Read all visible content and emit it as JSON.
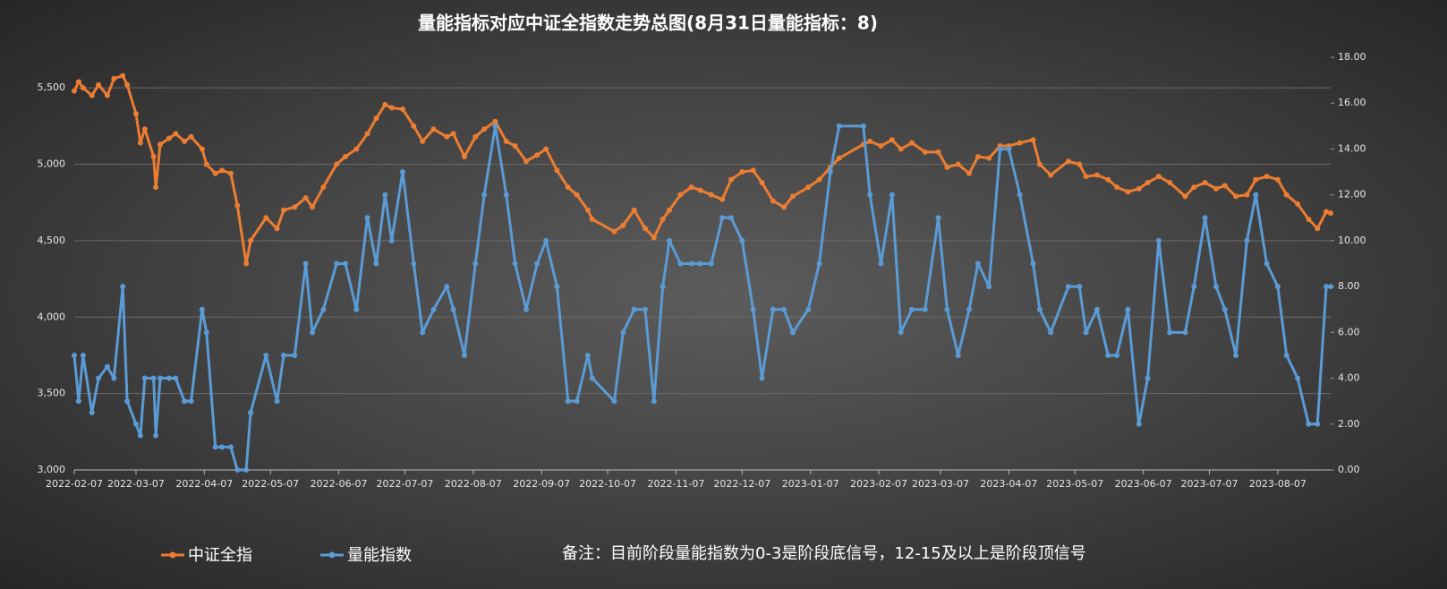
{
  "chart_data": {
    "type": "line",
    "title": "量能指标对应中证全指数走势总图(8月31日量能指标：8)",
    "note": "备注：目前阶段量能指数为0-3是阶段底信号，12-15及以上是阶段顶信号",
    "legend": "bottom",
    "grid": true,
    "x": [
      "2022-02-07",
      "2022-02-09",
      "2022-02-11",
      "2022-02-15",
      "2022-02-18",
      "2022-02-22",
      "2022-02-25",
      "2022-03-01",
      "2022-03-03",
      "2022-03-07",
      "2022-03-09",
      "2022-03-11",
      "2022-03-15",
      "2022-03-16",
      "2022-03-18",
      "2022-03-22",
      "2022-03-25",
      "2022-03-29",
      "2022-04-01",
      "2022-04-06",
      "2022-04-08",
      "2022-04-12",
      "2022-04-15",
      "2022-04-19",
      "2022-04-22",
      "2022-04-26",
      "2022-04-28",
      "2022-05-05",
      "2022-05-10",
      "2022-05-13",
      "2022-05-18",
      "2022-05-23",
      "2022-05-26",
      "2022-05-31",
      "2022-06-06",
      "2022-06-10",
      "2022-06-15",
      "2022-06-20",
      "2022-06-24",
      "2022-06-28",
      "2022-07-01",
      "2022-07-06",
      "2022-07-11",
      "2022-07-15",
      "2022-07-20",
      "2022-07-26",
      "2022-07-29",
      "2022-08-03",
      "2022-08-08",
      "2022-08-12",
      "2022-08-17",
      "2022-08-22",
      "2022-08-26",
      "2022-08-31",
      "2022-09-05",
      "2022-09-09",
      "2022-09-14",
      "2022-09-19",
      "2022-09-23",
      "2022-09-28",
      "2022-09-30",
      "2022-10-10",
      "2022-10-14",
      "2022-10-19",
      "2022-10-24",
      "2022-10-28",
      "2022-11-01",
      "2022-11-04",
      "2022-11-09",
      "2022-11-14",
      "2022-11-18",
      "2022-11-23",
      "2022-11-28",
      "2022-12-02",
      "2022-12-07",
      "2022-12-12",
      "2022-12-16",
      "2022-12-21",
      "2022-12-26",
      "2022-12-30",
      "2023-01-06",
      "2023-01-11",
      "2023-01-16",
      "2023-01-20",
      "2023-01-31",
      "2023-02-03",
      "2023-02-08",
      "2023-02-13",
      "2023-02-17",
      "2023-02-22",
      "2023-02-28",
      "2023-03-06",
      "2023-03-10",
      "2023-03-15",
      "2023-03-20",
      "2023-03-24",
      "2023-03-29",
      "2023-04-03",
      "2023-04-07",
      "2023-04-12",
      "2023-04-18",
      "2023-04-21",
      "2023-04-26",
      "2023-05-04",
      "2023-05-09",
      "2023-05-12",
      "2023-05-17",
      "2023-05-22",
      "2023-05-26",
      "2023-05-31",
      "2023-06-05",
      "2023-06-09",
      "2023-06-14",
      "2023-06-19",
      "2023-06-26",
      "2023-06-30",
      "2023-07-05",
      "2023-07-10",
      "2023-07-14",
      "2023-07-19",
      "2023-07-24",
      "2023-07-28",
      "2023-08-02",
      "2023-08-07",
      "2023-08-11",
      "2023-08-16",
      "2023-08-21",
      "2023-08-25",
      "2023-08-29",
      "2023-08-31"
    ],
    "series": [
      {
        "name": "中证全指",
        "color": "#ed7d31",
        "values": [
          5480,
          5540,
          5500,
          5450,
          5520,
          5450,
          5560,
          5580,
          5520,
          5330,
          5140,
          5230,
          5050,
          4850,
          5130,
          5170,
          5200,
          5150,
          5180,
          5100,
          5000,
          4940,
          4960,
          4940,
          4730,
          4350,
          4500,
          4650,
          4580,
          4700,
          4720,
          4780,
          4720,
          4850,
          5000,
          5050,
          5100,
          5200,
          5300,
          5390,
          5370,
          5360,
          5250,
          5150,
          5230,
          5180,
          5200,
          5050,
          5180,
          5230,
          5280,
          5150,
          5120,
          5020,
          5060,
          5100,
          4960,
          4850,
          4800,
          4700,
          4640,
          4560,
          4600,
          4700,
          4580,
          4520,
          4640,
          4700,
          4800,
          4850,
          4830,
          4800,
          4770,
          4900,
          4950,
          4960,
          4880,
          4760,
          4720,
          4790,
          4850,
          4900,
          4980,
          5040,
          5130,
          5150,
          5120,
          5160,
          5100,
          5140,
          5080,
          5080,
          4980,
          5000,
          4940,
          5050,
          5040,
          5120,
          5120,
          5140,
          5160,
          5000,
          4930,
          5020,
          5000,
          4920,
          4930,
          4900,
          4850,
          4820,
          4840,
          4880,
          4920,
          4880,
          4790,
          4850,
          4880,
          4840,
          4860,
          4790,
          4800,
          4900,
          4920,
          4900,
          4800,
          4740,
          4640,
          4580,
          4690,
          4680
        ]
      },
      {
        "name": "量能指数",
        "color": "#5b9bd5",
        "axis": "y2",
        "values": [
          5,
          3,
          5,
          2.5,
          4,
          4.5,
          4,
          8,
          3,
          2,
          1.5,
          4,
          4,
          1.5,
          4,
          4,
          4,
          3,
          3,
          7,
          6,
          1,
          1,
          1,
          0,
          0,
          2.5,
          5,
          3,
          5,
          5,
          9,
          6,
          7,
          9,
          9,
          7,
          11,
          9,
          12,
          10,
          13,
          9,
          6,
          7,
          8,
          7,
          5,
          9,
          12,
          15,
          12,
          9,
          7,
          9,
          10,
          8,
          3,
          3,
          5,
          4,
          3,
          6,
          7,
          7,
          3,
          8,
          10,
          9,
          9,
          9,
          9,
          11,
          11,
          10,
          7,
          4,
          7,
          7,
          6,
          7,
          9,
          13,
          15,
          15,
          12,
          9,
          12,
          6,
          7,
          7,
          11,
          7,
          5,
          7,
          9,
          8,
          14,
          14,
          12,
          9,
          7,
          6,
          8,
          8,
          6,
          7,
          5,
          5,
          7,
          2,
          4,
          10,
          6,
          6,
          8,
          11,
          8,
          7,
          5,
          10,
          12,
          9,
          8,
          5,
          4,
          2,
          2,
          8,
          8
        ]
      }
    ],
    "xlim": [
      "2022-02-07",
      "2023-08-31"
    ],
    "xticks": [
      "2022-02-07",
      "2022-03-07",
      "2022-04-07",
      "2022-05-07",
      "2022-06-07",
      "2022-07-07",
      "2022-08-07",
      "2022-09-07",
      "2022-10-07",
      "2022-11-07",
      "2022-12-07",
      "2023-01-07",
      "2023-02-07",
      "2023-03-07",
      "2023-04-07",
      "2023-05-07",
      "2023-06-07",
      "2023-07-07",
      "2023-08-07"
    ],
    "ylim": [
      3000,
      5700
    ],
    "yticks": [
      {
        "value": 3000,
        "label": "3,000"
      },
      {
        "value": 3500,
        "label": "3,500"
      },
      {
        "value": 4000,
        "label": "4,000"
      },
      {
        "value": 4500,
        "label": "4,500"
      },
      {
        "value": 5000,
        "label": "5,000"
      },
      {
        "value": 5500,
        "label": "5,500"
      }
    ],
    "y2lim": [
      0,
      18
    ],
    "y2ticks": [
      {
        "value": 0,
        "label": "0.00"
      },
      {
        "value": 2,
        "label": "2.00"
      },
      {
        "value": 4,
        "label": "4.00"
      },
      {
        "value": 6,
        "label": "6.00"
      },
      {
        "value": 8,
        "label": "8.00"
      },
      {
        "value": 10,
        "label": "10.00"
      },
      {
        "value": 12,
        "label": "12.00"
      },
      {
        "value": 14,
        "label": "14.00"
      },
      {
        "value": 16,
        "label": "16.00"
      },
      {
        "value": 18,
        "label": "18.00"
      }
    ]
  }
}
